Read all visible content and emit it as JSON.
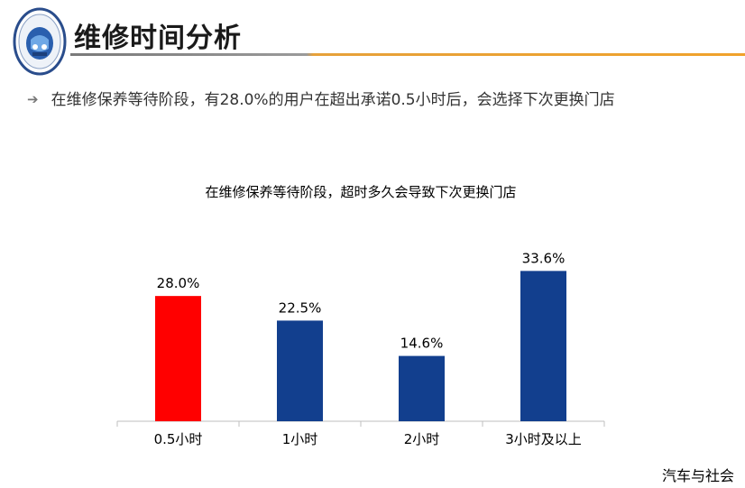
{
  "header": {
    "title": "维修时间分析",
    "bullet": "在维修保养等待阶段，有28.0%的用户在超出承诺0.5小时后，会选择下次更换门店"
  },
  "footer": {
    "source": "汽车与社会"
  },
  "colors": {
    "highlight": "#ff0000",
    "bar": "#123f8e",
    "title_rule_left": "#8c8c8c",
    "title_rule_right": "#f0a22b"
  },
  "chart_data": {
    "type": "bar",
    "title": "在维修保养等待阶段，超时多久会导致下次更换门店",
    "categories": [
      "0.5小时",
      "1小时",
      "2小时",
      "3小时及以上"
    ],
    "values": [
      28.0,
      22.5,
      14.6,
      33.6
    ],
    "data_labels": [
      "28.0%",
      "22.5%",
      "14.6%",
      "33.6%"
    ],
    "highlight_index": 0,
    "xlabel": "",
    "ylabel": "",
    "ylim": [
      0,
      40
    ],
    "unit": "%",
    "grid": false,
    "legend": "none"
  }
}
